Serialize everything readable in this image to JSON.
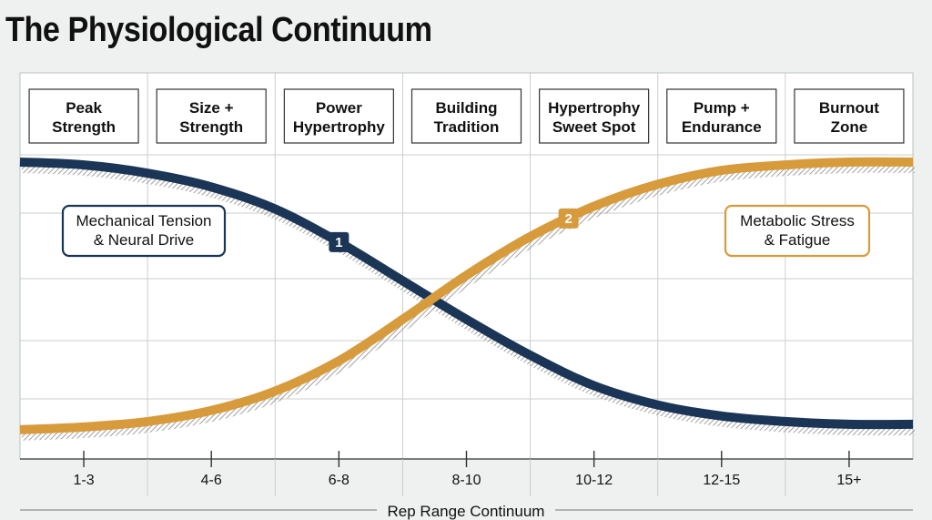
{
  "chart_data": {
    "type": "line",
    "title": "The Physiological Continuum",
    "xlabel": "Rep Range Continuum",
    "ylabel": "",
    "categories": [
      "1-3",
      "4-6",
      "6-8",
      "8-10",
      "10-12",
      "12-15",
      "15+"
    ],
    "zones": [
      [
        "Peak",
        "Strength"
      ],
      [
        "Size +",
        "Strength"
      ],
      [
        "Power",
        "Hypertrophy"
      ],
      [
        "Building",
        "Tradition"
      ],
      [
        "Hypertrophy",
        "Sweet Spot"
      ],
      [
        "Pump +",
        "Endurance"
      ],
      [
        "Burnout",
        "Zone"
      ]
    ],
    "x_range": [
      0,
      7
    ],
    "ylim": [
      0,
      1
    ],
    "grid": true,
    "series": [
      {
        "label_lines": [
          "Mechanical Tension",
          "& Neural Drive"
        ],
        "badge": "1",
        "color": "#1b3556",
        "x": [
          0,
          0.5,
          1,
          1.5,
          2,
          2.5,
          3,
          3.5,
          4,
          4.5,
          5,
          5.5,
          6,
          6.5,
          7
        ],
        "values": [
          0.99,
          0.98,
          0.95,
          0.9,
          0.82,
          0.7,
          0.56,
          0.42,
          0.29,
          0.18,
          0.11,
          0.07,
          0.05,
          0.04,
          0.04
        ]
      },
      {
        "label_lines": [
          "Metabolic Stress",
          "& Fatigue"
        ],
        "badge": "2",
        "color": "#d79b3c",
        "x": [
          0,
          0.5,
          1,
          1.5,
          2,
          2.5,
          3,
          3.5,
          4,
          4.5,
          5,
          5.5,
          6,
          6.5,
          7
        ],
        "values": [
          0.02,
          0.03,
          0.05,
          0.09,
          0.16,
          0.27,
          0.42,
          0.58,
          0.72,
          0.83,
          0.91,
          0.96,
          0.98,
          0.99,
          0.99
        ]
      }
    ]
  }
}
